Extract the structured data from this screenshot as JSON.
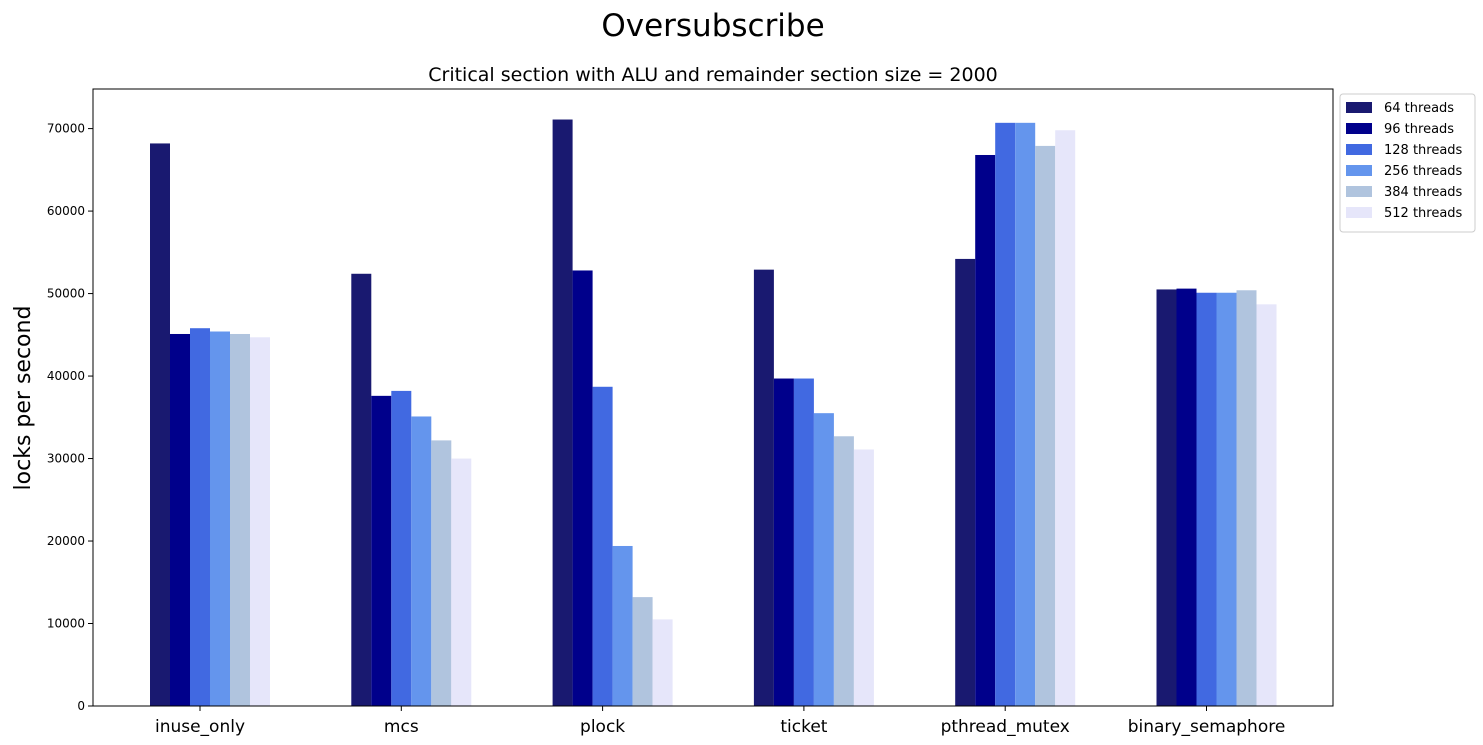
{
  "suptitle": "Oversubscribe",
  "chart_data": {
    "type": "bar",
    "title": "Critical section with ALU and remainder section size = 2000",
    "xlabel": "",
    "ylabel": "locks per second",
    "ylim": [
      0,
      74800
    ],
    "yticks": [
      0,
      10000,
      20000,
      30000,
      40000,
      50000,
      60000,
      70000
    ],
    "categories": [
      "inuse_only",
      "mcs",
      "plock",
      "ticket",
      "pthread_mutex",
      "binary_semaphore"
    ],
    "legend_position": "outside-top-right",
    "grid": false,
    "series": [
      {
        "name": "64 threads",
        "color": "#191970",
        "values": [
          68200,
          52400,
          71100,
          52900,
          54200,
          50500
        ]
      },
      {
        "name": "96 threads",
        "color": "#00008b",
        "values": [
          45100,
          37600,
          52800,
          39700,
          66800,
          50600
        ]
      },
      {
        "name": "128 threads",
        "color": "#4169e1",
        "values": [
          45800,
          38200,
          38700,
          39700,
          70700,
          50100
        ]
      },
      {
        "name": "256 threads",
        "color": "#6495ed",
        "values": [
          45400,
          35100,
          19400,
          35500,
          70700,
          50100
        ]
      },
      {
        "name": "384 threads",
        "color": "#b0c4de",
        "values": [
          45100,
          32200,
          13200,
          32700,
          67900,
          50400
        ]
      },
      {
        "name": "512 threads",
        "color": "#e6e6fa",
        "values": [
          44700,
          30000,
          10500,
          31100,
          69800,
          48700
        ]
      }
    ]
  }
}
